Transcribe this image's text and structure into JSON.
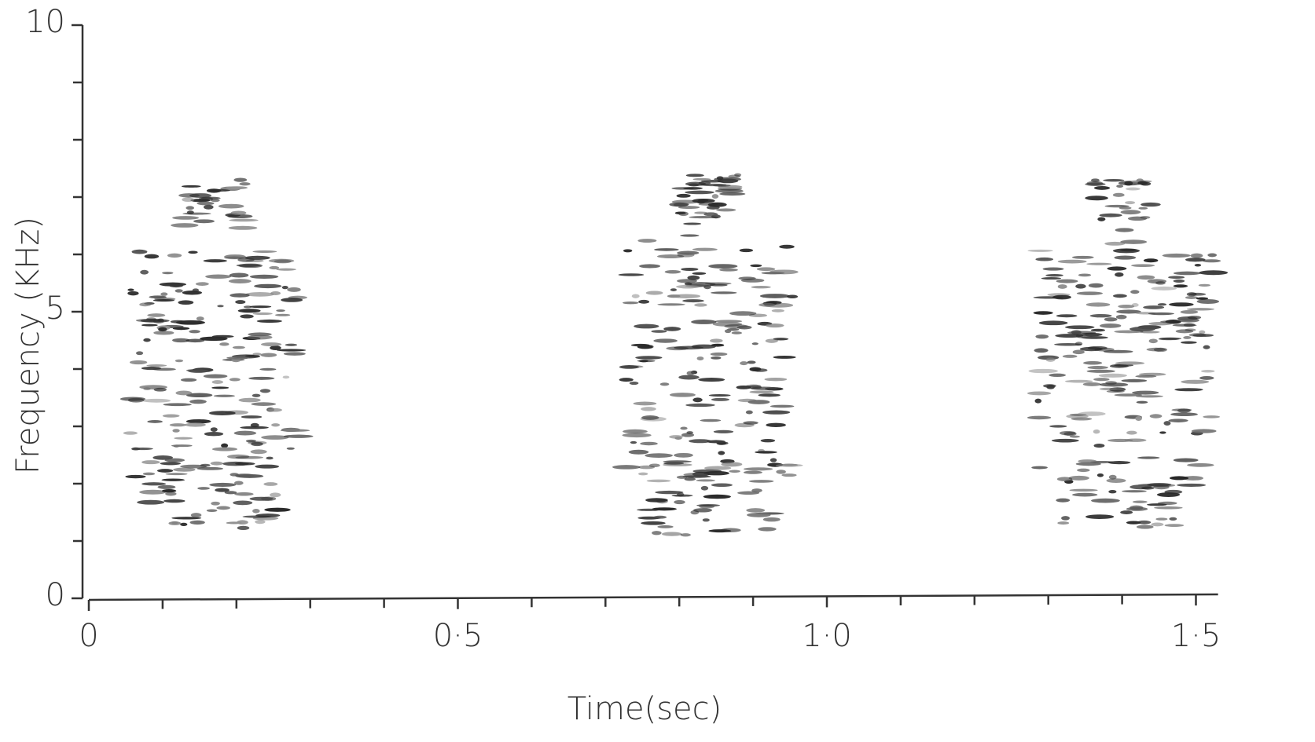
{
  "chart_data": {
    "type": "spectrogram",
    "xlabel": "Time(sec)",
    "ylabel": "Frequency (KHz)",
    "x": [
      [
        0.05,
        0.29
      ],
      [
        0.72,
        0.96
      ],
      [
        1.28,
        1.53
      ]
    ],
    "values": [
      [
        1.2,
        7.3
      ],
      [
        1.1,
        7.4
      ],
      [
        1.2,
        7.3
      ]
    ],
    "color": "#2a2a2a",
    "xlim": [
      0,
      1.53
    ],
    "ylim": [
      0,
      10
    ],
    "xticks": [
      0,
      {
        "value": 0.5,
        "label": "0·5"
      },
      {
        "value": 1.0,
        "label": "1·0"
      },
      {
        "value": 1.5,
        "label": "1·5"
      }
    ],
    "xminorticks": [
      0.1,
      0.2,
      0.3,
      0.4,
      0.6,
      0.7,
      0.8,
      0.9,
      1.1,
      1.2,
      1.3,
      1.4
    ],
    "yticks": [
      0,
      5,
      10
    ],
    "yminorticks": [
      1,
      2,
      3,
      4,
      6,
      7,
      8,
      9
    ]
  }
}
